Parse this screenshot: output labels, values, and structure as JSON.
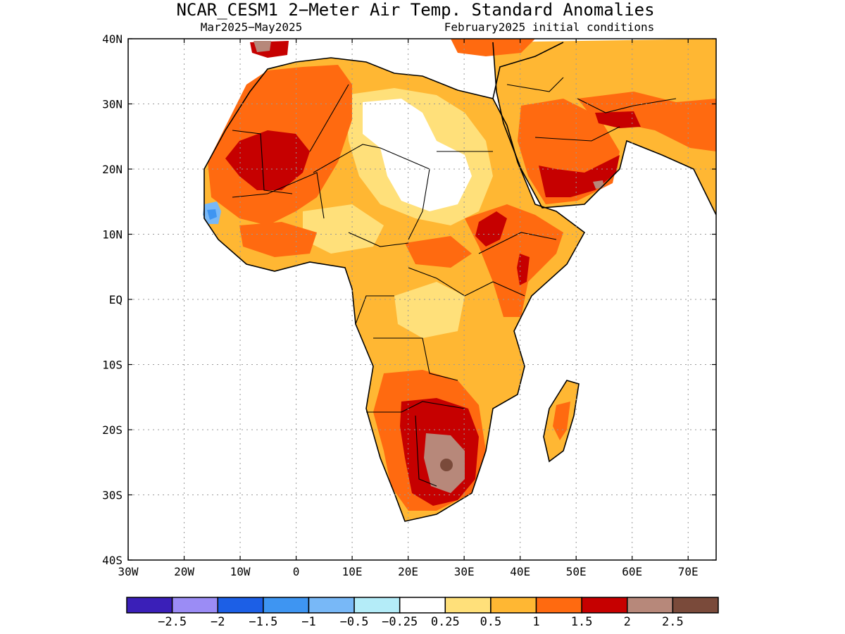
{
  "title": "NCAR_CESM1 2−Meter Air Temp. Standard Anomalies",
  "subtitle_left": "Mar2025−May2025",
  "subtitle_right": "February2025 initial conditions",
  "axes": {
    "lon_labels": [
      "30W",
      "20W",
      "10W",
      "0",
      "10E",
      "20E",
      "30E",
      "40E",
      "50E",
      "60E",
      "70E"
    ],
    "lat_labels": [
      "40N",
      "30N",
      "20N",
      "10N",
      "EQ",
      "10S",
      "20S",
      "30S",
      "40S"
    ],
    "lon_range": [
      -30,
      75
    ],
    "lat_range": [
      -40,
      40
    ],
    "grid": "dotted"
  },
  "colorbar": {
    "colors": [
      "#3a1fb8",
      "#9b8cf5",
      "#1c5fe6",
      "#3e95f2",
      "#78b8f7",
      "#b4ecf8",
      "#ffffff",
      "#ffe07a",
      "#ffb733",
      "#ff6a10",
      "#c60000",
      "#b7887a",
      "#7a4a3a"
    ],
    "labels": [
      "−2.5",
      "−2",
      "−1.5",
      "−1",
      "−0.5",
      "−0.25",
      "0.25",
      "0.5",
      "1",
      "1.5",
      "2",
      "2.5"
    ]
  },
  "anomaly_regions": [
    {
      "level": "0.5",
      "color": "#ffe07a"
    },
    {
      "level": "1",
      "color": "#ffb733"
    },
    {
      "level": "1.5",
      "color": "#ff6a10"
    },
    {
      "level": "2",
      "color": "#c60000"
    },
    {
      "level": "2.5",
      "color": "#b7887a"
    }
  ]
}
